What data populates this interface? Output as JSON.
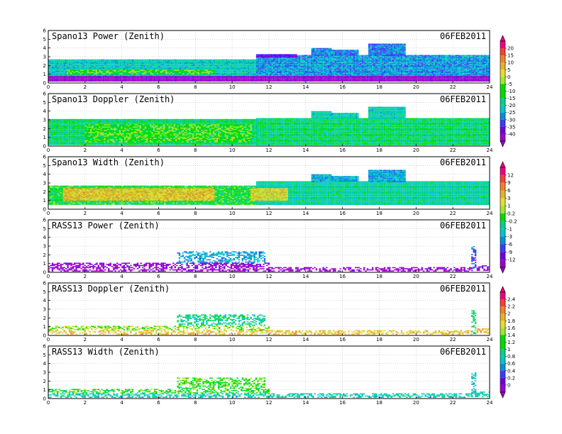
{
  "chart_data": [
    {
      "type": "heatmap",
      "title": "Spano13 Power (Zenith)",
      "date": "06FEB2011",
      "xlim": [
        0,
        24
      ],
      "ylim": [
        0,
        6
      ],
      "xticks": [
        "0",
        "2",
        "4",
        "6",
        "8",
        "10",
        "12",
        "14",
        "16",
        "18",
        "20",
        "22",
        "24"
      ],
      "yticks": [
        "0",
        "1",
        "2",
        "3",
        "4",
        "5",
        "6"
      ],
      "grid": true,
      "colorbar": "cbar1",
      "bands": [
        {
          "x": [
            0,
            11.3
          ],
          "y": [
            0.8,
            2.7
          ],
          "level": 0.36
        },
        {
          "x": [
            11.3,
            24
          ],
          "y": [
            0.8,
            3.2
          ],
          "level": 0.28
        },
        {
          "x": [
            0,
            24
          ],
          "y": [
            0.55,
            0.8
          ],
          "level": 0.08
        },
        {
          "x": [
            0,
            24
          ],
          "y": [
            0.2,
            0.55
          ],
          "level": 0.03
        },
        {
          "x": [
            1,
            9
          ],
          "y": [
            1.1,
            1.5
          ],
          "level": 0.52
        },
        {
          "x": [
            14.3,
            15.4
          ],
          "y": [
            3.2,
            4.0
          ],
          "level": 0.25
        },
        {
          "x": [
            15.4,
            16.8
          ],
          "y": [
            3.2,
            3.8
          ],
          "level": 0.25
        },
        {
          "x": [
            17.4,
            19.4
          ],
          "y": [
            3.2,
            4.5
          ],
          "level": 0.25
        },
        {
          "x": [
            11.3,
            13.5
          ],
          "y": [
            3.0,
            3.3
          ],
          "level": 0.15
        }
      ]
    },
    {
      "type": "heatmap",
      "title": "Spano13 Doppler (Zenith)",
      "date": "06FEB2011",
      "xlim": [
        0,
        24
      ],
      "ylim": [
        0,
        6
      ],
      "xticks": [
        "0",
        "2",
        "4",
        "6",
        "8",
        "10",
        "12",
        "14",
        "16",
        "18",
        "20",
        "22",
        "24"
      ],
      "yticks": [
        "0",
        "1",
        "2",
        "3",
        "4",
        "5",
        "6"
      ],
      "grid": true,
      "colorbar": "cbar1",
      "bands": [
        {
          "x": [
            0,
            11.3
          ],
          "y": [
            0.2,
            3.1
          ],
          "level": 0.44
        },
        {
          "x": [
            11.3,
            24
          ],
          "y": [
            0.2,
            3.2
          ],
          "level": 0.44
        },
        {
          "x": [
            14.3,
            15.4
          ],
          "y": [
            3.2,
            4.0
          ],
          "level": 0.38
        },
        {
          "x": [
            15.4,
            16.8
          ],
          "y": [
            3.2,
            3.8
          ],
          "level": 0.38
        },
        {
          "x": [
            17.4,
            19.4
          ],
          "y": [
            3.2,
            4.5
          ],
          "level": 0.38
        },
        {
          "x": [
            2,
            11
          ],
          "y": [
            0.5,
            2.5
          ],
          "level": 0.52
        }
      ]
    },
    {
      "type": "heatmap",
      "title": "Spano13 Width (Zenith)",
      "date": "06FEB2011",
      "xlim": [
        0,
        24
      ],
      "ylim": [
        0,
        6
      ],
      "xticks": [
        "0",
        "2",
        "4",
        "6",
        "8",
        "10",
        "12",
        "14",
        "16",
        "18",
        "20",
        "22",
        "24"
      ],
      "yticks": [
        "0",
        "1",
        "2",
        "3",
        "4",
        "5",
        "6"
      ],
      "grid": true,
      "colorbar": "cbar2",
      "bands": [
        {
          "x": [
            0,
            11.3
          ],
          "y": [
            0.5,
            2.7
          ],
          "level": 0.48
        },
        {
          "x": [
            11.3,
            24
          ],
          "y": [
            0.5,
            3.2
          ],
          "level": 0.4
        },
        {
          "x": [
            0.8,
            9
          ],
          "y": [
            1.0,
            2.4
          ],
          "level": 0.7
        },
        {
          "x": [
            11,
            13
          ],
          "y": [
            1.0,
            2.4
          ],
          "level": 0.66
        },
        {
          "x": [
            14.3,
            15.4
          ],
          "y": [
            3.2,
            4.0
          ],
          "level": 0.3
        },
        {
          "x": [
            15.4,
            16.8
          ],
          "y": [
            3.2,
            3.8
          ],
          "level": 0.3
        },
        {
          "x": [
            17.4,
            19.4
          ],
          "y": [
            3.2,
            4.5
          ],
          "level": 0.3
        }
      ]
    },
    {
      "type": "heatmap",
      "title": "RASS13 Power (Zenith)",
      "date": "06FEB2011",
      "xlim": [
        0,
        24
      ],
      "ylim": [
        0,
        6
      ],
      "xticks": [
        "0",
        "2",
        "4",
        "6",
        "8",
        "10",
        "12",
        "14",
        "16",
        "18",
        "20",
        "22",
        "24"
      ],
      "yticks": [
        "0",
        "1",
        "2",
        "3",
        "4",
        "5",
        "6"
      ],
      "grid": true,
      "colorbar": "cbar2",
      "bands": [
        {
          "x": [
            0,
            23
          ],
          "y": [
            0.2,
            0.6
          ],
          "level": 0.03
        },
        {
          "x": [
            0,
            12
          ],
          "y": [
            0.6,
            1.1
          ],
          "level": 0.06
        },
        {
          "x": [
            7,
            11.8
          ],
          "y": [
            1.2,
            2.4
          ],
          "level": 0.3
        },
        {
          "x": [
            23,
            23.2
          ],
          "y": [
            0.2,
            3.0
          ],
          "level": 0.2
        },
        {
          "x": [
            23.2,
            24
          ],
          "y": [
            0.2,
            0.8
          ],
          "level": 0.06
        }
      ]
    },
    {
      "type": "heatmap",
      "title": "RASS13 Doppler (Zenith)",
      "date": "06FEB2011",
      "xlim": [
        0,
        24
      ],
      "ylim": [
        0,
        6
      ],
      "xticks": [
        "0",
        "2",
        "4",
        "6",
        "8",
        "10",
        "12",
        "14",
        "16",
        "18",
        "20",
        "22",
        "24"
      ],
      "yticks": [
        "0",
        "1",
        "2",
        "3",
        "4",
        "5",
        "6"
      ],
      "grid": true,
      "colorbar": "cbar3",
      "bands": [
        {
          "x": [
            0,
            23
          ],
          "y": [
            0.2,
            0.6
          ],
          "level": 0.7
        },
        {
          "x": [
            0,
            12
          ],
          "y": [
            0.6,
            1.1
          ],
          "level": 0.58
        },
        {
          "x": [
            7,
            11.8
          ],
          "y": [
            1.2,
            2.4
          ],
          "level": 0.42
        },
        {
          "x": [
            23,
            23.2
          ],
          "y": [
            0.2,
            3.0
          ],
          "level": 0.45
        },
        {
          "x": [
            23.2,
            24
          ],
          "y": [
            0.2,
            0.8
          ],
          "level": 0.7
        }
      ]
    },
    {
      "type": "heatmap",
      "title": "RASS13 Width (Zenith)",
      "date": "06FEB2011",
      "xlim": [
        0,
        24
      ],
      "ylim": [
        0,
        6
      ],
      "xticks": [
        "0",
        "2",
        "4",
        "6",
        "8",
        "10",
        "12",
        "14",
        "16",
        "18",
        "20",
        "22",
        "24"
      ],
      "yticks": [
        "0",
        "1",
        "2",
        "3",
        "4",
        "5",
        "6"
      ],
      "grid": true,
      "colorbar": "cbar3",
      "bands": [
        {
          "x": [
            0,
            23
          ],
          "y": [
            0.2,
            0.6
          ],
          "level": 0.38
        },
        {
          "x": [
            0,
            12
          ],
          "y": [
            0.6,
            1.1
          ],
          "level": 0.5
        },
        {
          "x": [
            7,
            11.8
          ],
          "y": [
            1.2,
            2.4
          ],
          "level": 0.52
        },
        {
          "x": [
            23,
            23.2
          ],
          "y": [
            0.2,
            3.0
          ],
          "level": 0.35
        },
        {
          "x": [
            23.2,
            24
          ],
          "y": [
            0.2,
            0.8
          ],
          "level": 0.38
        }
      ]
    }
  ],
  "colorbars": {
    "cbar1": {
      "labels": [
        "20",
        "15",
        "10",
        "5",
        "0",
        "-5",
        "-10",
        "-15",
        "-20",
        "-25",
        "-30",
        "-35",
        "-40"
      ]
    },
    "cbar2": {
      "labels": [
        "12",
        "9",
        "6",
        "3",
        "1",
        "0.2",
        "-0.2",
        "-1",
        "-3",
        "-6",
        "-9",
        "-12"
      ]
    },
    "cbar3": {
      "labels": [
        "2.4",
        "2.2",
        "2",
        "1.8",
        "1.6",
        "1.4",
        "1.2",
        "1",
        "0.8",
        "0.6",
        "0.4",
        "0.2",
        "0"
      ]
    }
  },
  "colors": {
    "palette": [
      "#a000c8",
      "#7000e0",
      "#3c3cff",
      "#0090d8",
      "#00c8c8",
      "#00d28c",
      "#00dc00",
      "#a0e632",
      "#e6dc32",
      "#e6af2d",
      "#f08228",
      "#fa3c3c",
      "#f00082"
    ],
    "background": "#ffffff",
    "grid": "#9a9a9a"
  }
}
